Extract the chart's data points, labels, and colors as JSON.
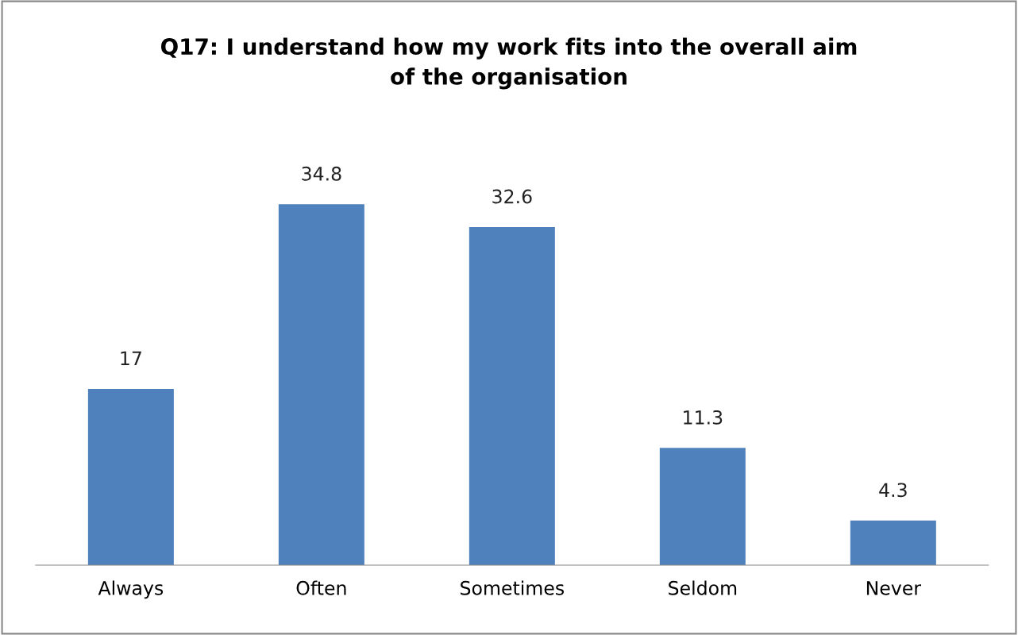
{
  "chart_data": {
    "type": "bar",
    "title": "Q17: I understand how my work fits into the overall aim\nof the organisation",
    "categories": [
      "Always",
      "Often",
      "Sometimes",
      "Seldom",
      "Never"
    ],
    "values": [
      17,
      34.8,
      32.6,
      11.3,
      4.3
    ],
    "color": "#4f81bd",
    "data_labels": true,
    "grid": false,
    "legend": false
  }
}
